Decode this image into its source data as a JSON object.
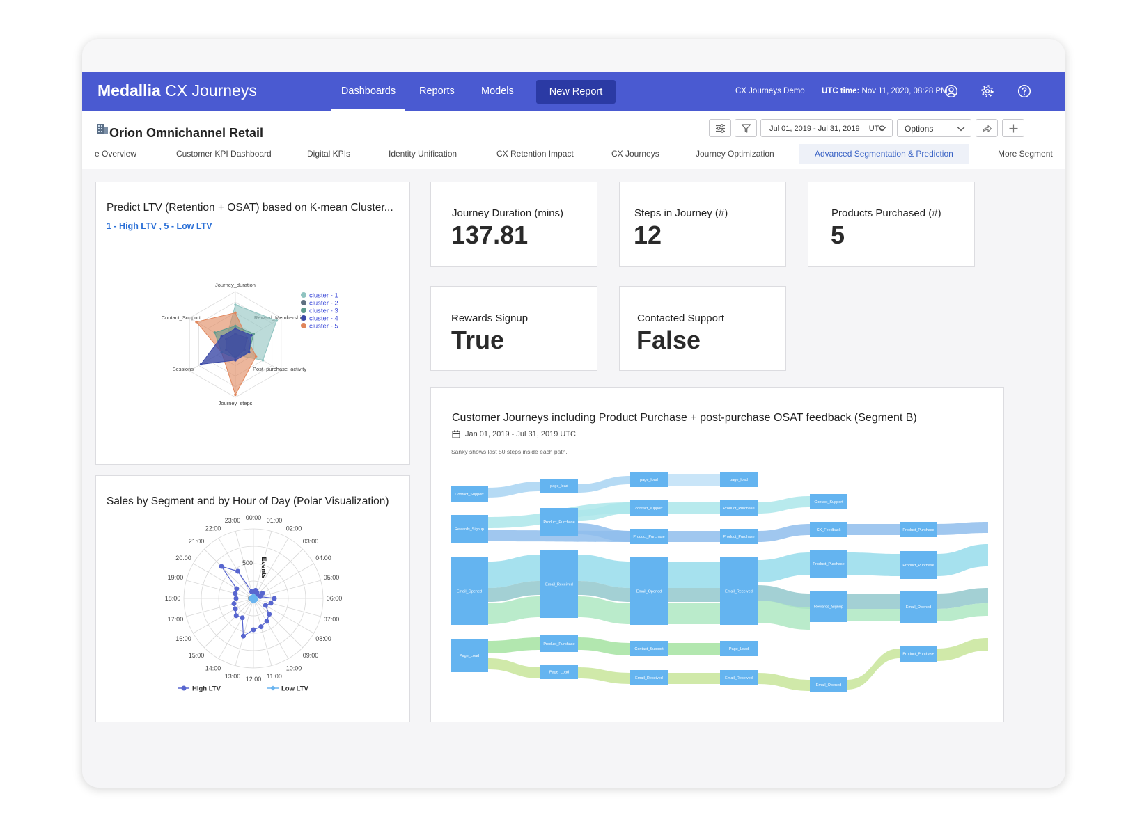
{
  "app": {
    "brand_bold": "Medallia",
    "brand_light": "CX Journeys",
    "nav": [
      "Dashboards",
      "Reports",
      "Models"
    ],
    "new_report": "New Report",
    "demo": "CX Journeys Demo",
    "utc_label": "UTC time:",
    "utc_value": "Nov 11, 2020, 08:28 PM",
    "icons": [
      "user-icon",
      "gear-icon",
      "help-icon"
    ]
  },
  "header": {
    "title": "Orion Omnichannel Retail",
    "date_range": "Jul 01, 2019 - Jul 31, 2019",
    "timezone": "UTC",
    "options": "Options",
    "tabs": [
      "e Overview",
      "Customer KPI Dashboard",
      "Digital KPIs",
      "Identity Unification",
      "CX Retention Impact",
      "CX Journeys",
      "Journey Optimization",
      "Advanced Segmentation & Prediction",
      "More Segment"
    ]
  },
  "radar_card": {
    "title": "Predict LTV (Retention + OSAT) based on K-mean Cluster...",
    "subtitle": "1 - High LTV , 5 - Low LTV"
  },
  "polar_card": {
    "title": "Sales by Segment and by Hour of Day (Polar Visualization)"
  },
  "kpis": [
    {
      "label": "Journey Duration (mins)",
      "value": "137.81"
    },
    {
      "label": "Steps in Journey (#)",
      "value": "12"
    },
    {
      "label": "Products Purchased (#)",
      "value": "5"
    },
    {
      "label": "Rewards Signup",
      "value": "True"
    },
    {
      "label": "Contacted Support",
      "value": "False"
    }
  ],
  "sankey_card": {
    "title": "Customer Journeys including Product Purchase + post-purchase OSAT feedback (Segment B)",
    "date": "Jan 01, 2019 - Jul 31, 2019 UTC",
    "note": "Sanky shows last 50 steps inside each path."
  },
  "chart_data": [
    {
      "type": "radar",
      "axes": [
        "Journey_duration",
        "Reward_Membership",
        "Post_purchase_activity",
        "Journey_steps",
        "Sessions",
        "Contact_Support"
      ],
      "legend": [
        "cluster - 1",
        "cluster - 2",
        "cluster - 3",
        "cluster - 4",
        "cluster - 5"
      ],
      "legend_position": "top-right",
      "colors": [
        "#8fc3c0",
        "#5f7080",
        "#5e9a8e",
        "#3b49a6",
        "#e0855a"
      ],
      "series": [
        {
          "name": "cluster - 1",
          "values": [
            0.75,
            0.9,
            0.6,
            0.2,
            0.15,
            0.2
          ]
        },
        {
          "name": "cluster - 2",
          "values": [
            0.2,
            0.25,
            0.2,
            0.25,
            0.2,
            0.2
          ]
        },
        {
          "name": "cluster - 3",
          "values": [
            0.35,
            0.4,
            0.3,
            0.25,
            0.3,
            0.45
          ]
        },
        {
          "name": "cluster - 4",
          "values": [
            0.3,
            0.35,
            0.3,
            0.3,
            0.75,
            0.3
          ]
        },
        {
          "name": "cluster - 5",
          "values": [
            0.6,
            0.25,
            0.45,
            0.95,
            0.3,
            0.85
          ]
        }
      ]
    },
    {
      "type": "polar",
      "hours": [
        "00:00",
        "01:00",
        "02:00",
        "03:00",
        "04:00",
        "05:00",
        "06:00",
        "07:00",
        "08:00",
        "09:00",
        "10:00",
        "11:00",
        "12:00",
        "13:00",
        "14:00",
        "15:00",
        "16:00",
        "17:00",
        "18:00",
        "19:00",
        "20:00",
        "21:00",
        "22:00",
        "23:00"
      ],
      "radial_label": "Events",
      "radial_tick": "500",
      "radial_zero": "0",
      "rmax": 1000,
      "legend": [
        "High LTV",
        "Low LTV"
      ],
      "legend_position": "bottom",
      "colors": [
        "#5866cf",
        "#6ab4ef"
      ],
      "series": [
        {
          "name": "High LTV",
          "values": [
            90,
            120,
            100,
            80,
            150,
            100,
            300,
            260,
            200,
            320,
            380,
            420,
            450,
            560,
            320,
            350,
            300,
            290,
            250,
            270,
            280,
            650,
            450,
            100
          ]
        },
        {
          "name": "Low LTV",
          "values": [
            40,
            30,
            30,
            30,
            20,
            30,
            30,
            30,
            40,
            40,
            30,
            30,
            40,
            40,
            30,
            30,
            30,
            40,
            40,
            40,
            30,
            30,
            30,
            30
          ]
        }
      ]
    },
    {
      "type": "sankey",
      "nodes": [
        {
          "label": "Contact_Support",
          "color": "#64b4f0"
        },
        {
          "label": "Rewards_Signup",
          "color": "#64b4f0"
        },
        {
          "label": "Email_Opened",
          "color": "#64b4f0"
        },
        {
          "label": "Page_Load",
          "color": "#64b4f0"
        },
        {
          "label": "page_load",
          "color": "#64b4f0"
        },
        {
          "label": "Product_Purchase",
          "color": "#64b4f0"
        },
        {
          "label": "Email_Received",
          "color": "#64b4f0"
        },
        {
          "label": "Product_Purchase",
          "color": "#64b4f0"
        },
        {
          "label": "Page_Load",
          "color": "#64b4f0"
        },
        {
          "label": "page_load",
          "color": "#64b4f0"
        },
        {
          "label": "contact_support",
          "color": "#64b4f0"
        },
        {
          "label": "Product_Purchase",
          "color": "#64b4f0"
        },
        {
          "label": "Email_Opened",
          "color": "#64b4f0"
        },
        {
          "label": "Contact_Support",
          "color": "#64b4f0"
        },
        {
          "label": "Email_Received",
          "color": "#64b4f0"
        },
        {
          "label": "page_load",
          "color": "#64b4f0"
        },
        {
          "label": "Product_Purchase",
          "color": "#64b4f0"
        },
        {
          "label": "Product_Purchase",
          "color": "#64b4f0"
        },
        {
          "label": "Email_Received",
          "color": "#64b4f0"
        },
        {
          "label": "Page_Load",
          "color": "#64b4f0"
        },
        {
          "label": "Email_Received",
          "color": "#64b4f0"
        },
        {
          "label": "Contact_Support",
          "color": "#64b4f0"
        },
        {
          "label": "CX_Feedback",
          "color": "#64b4f0"
        },
        {
          "label": "Product_Purchase",
          "color": "#64b4f0"
        },
        {
          "label": "Rewards_Signup",
          "color": "#64b4f0"
        },
        {
          "label": "Email_Opened",
          "color": "#64b4f0"
        },
        {
          "label": "Product_Purchase",
          "color": "#64b4f0"
        },
        {
          "label": "Product_Purchase",
          "color": "#64b4f0"
        },
        {
          "label": "Email_Opened",
          "color": "#64b4f0"
        },
        {
          "label": "Product_Purchase",
          "color": "#64b4f0"
        }
      ]
    }
  ]
}
